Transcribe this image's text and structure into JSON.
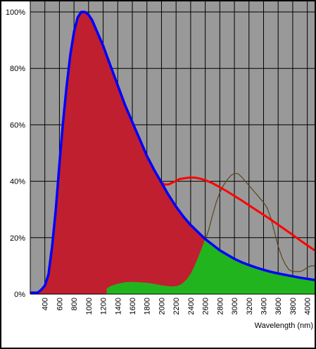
{
  "chart_data": {
    "type": "area",
    "title": "",
    "xlabel": "Wavelength (nm)",
    "ylabel": "",
    "xlim": [
      200,
      4100
    ],
    "ylim": [
      0,
      100
    ],
    "x_ticks": [
      400,
      600,
      800,
      1000,
      1200,
      1400,
      1600,
      1800,
      2000,
      2200,
      2400,
      2600,
      2800,
      3000,
      3200,
      3400,
      3600,
      3800,
      4000
    ],
    "x_tick_labels": [
      "400",
      "600",
      "800",
      "1000",
      "1200",
      "1400",
      "1600",
      "1800",
      "2000",
      "2200",
      "2400",
      "2600",
      "2800",
      "3000",
      "3200",
      "3400",
      "3600",
      "3800",
      "4000"
    ],
    "y_ticks": [
      0,
      20,
      40,
      60,
      80,
      100
    ],
    "y_tick_labels": [
      "0%",
      "20%",
      "40%",
      "60%",
      "80%",
      "100%"
    ],
    "grid": true,
    "legend": "none",
    "colors": {
      "plot_background": "#999999",
      "grid": "#000000",
      "blue_curve": "#0000ff",
      "red_fill": "#bf1f2f",
      "red_curve": "#ff0000",
      "green_fill": "#22b41e",
      "brown_curve": "#5a4620",
      "border": "#000000"
    },
    "series": [
      {
        "role": "blue-curve",
        "x": [
          200,
          260,
          300,
          350,
          400,
          450,
          500,
          550,
          600,
          650,
          700,
          750,
          800,
          850,
          900,
          950,
          1000,
          1050,
          1100,
          1150,
          1200,
          1300,
          1400,
          1500,
          1600,
          1700,
          1800,
          1900,
          2000,
          2100,
          2200,
          2300,
          2400,
          2500,
          2600,
          2700,
          2800,
          2900,
          3000,
          3100,
          3200,
          3300,
          3400,
          3500,
          3600,
          3700,
          3800,
          3900,
          4000,
          4100
        ],
        "values": [
          0.5,
          0.5,
          0.5,
          1.5,
          3,
          7,
          17,
          30,
          46,
          61,
          74,
          85,
          93,
          98,
          100,
          100,
          99,
          97,
          94,
          91,
          88,
          81,
          74,
          67,
          61,
          55,
          49,
          44,
          39.5,
          35,
          31,
          27.5,
          24.5,
          22,
          19.5,
          17.5,
          15.5,
          14,
          12.5,
          11.3,
          10.3,
          9.4,
          8.6,
          7.9,
          7.3,
          6.8,
          6.3,
          5.8,
          5.4,
          5
        ]
      },
      {
        "role": "red-fill-top",
        "x": [
          200,
          260,
          300,
          350,
          400,
          450,
          500,
          550,
          600,
          650,
          700,
          750,
          800,
          850,
          900,
          950,
          1000,
          1050,
          1100,
          1150,
          1200,
          1300,
          1400,
          1500,
          1600,
          1700,
          1800,
          1900,
          2000,
          2100,
          2200,
          2300,
          2400,
          2500,
          2550,
          2600
        ],
        "values": [
          0.5,
          0.5,
          0.5,
          1.5,
          3,
          7,
          17,
          30,
          46,
          61,
          74,
          85,
          93,
          98,
          100,
          100,
          99,
          97,
          94,
          91,
          88,
          81,
          74,
          67,
          61,
          55,
          49,
          44,
          39.5,
          35,
          31,
          27.5,
          24.5,
          22,
          20.8,
          19.5
        ]
      },
      {
        "role": "green-fill-top",
        "x": [
          2600,
          2700,
          2800,
          2900,
          3000,
          3100,
          3200,
          3300,
          3400,
          3500,
          3600,
          3700,
          3800,
          3900,
          4000,
          4100
        ],
        "values": [
          19.5,
          17.5,
          15.5,
          14,
          12.5,
          11.3,
          10.3,
          9.4,
          8.6,
          7.9,
          7.3,
          6.8,
          6.3,
          5.8,
          5.4,
          5
        ]
      },
      {
        "role": "green-fill-bottom",
        "x": [
          1250,
          1300,
          1400,
          1500,
          1600,
          1700,
          1800,
          1900,
          2000,
          2100,
          2150,
          2200,
          2250,
          2300,
          2350,
          2400,
          2450,
          2500,
          2550,
          2600
        ],
        "values": [
          2,
          2.8,
          3.7,
          4.2,
          4.3,
          4.2,
          4,
          3.6,
          3.1,
          2.8,
          2.7,
          2.8,
          3.2,
          4,
          5.3,
          7.2,
          9.8,
          12.8,
          16,
          19.5
        ]
      },
      {
        "role": "red-curve",
        "x": [
          2000,
          2050,
          2100,
          2150,
          2200,
          2250,
          2300,
          2350,
          2400,
          2450,
          2500,
          2550,
          2600,
          2700,
          2800,
          2900,
          3000,
          3100,
          3200,
          3300,
          3400,
          3500,
          3600,
          3700,
          3800,
          3900,
          4000,
          4100
        ],
        "values": [
          39.5,
          38.8,
          38.9,
          39.5,
          40.2,
          40.8,
          41,
          41.2,
          41.3,
          41.3,
          41.1,
          40.8,
          40.4,
          39.3,
          37.9,
          36.4,
          34.8,
          33.2,
          31.5,
          29.8,
          28.1,
          26.4,
          24.6,
          22.8,
          21,
          19.1,
          17.3,
          15.5
        ]
      },
      {
        "role": "brown-curve",
        "x": [
          2600,
          2650,
          2700,
          2750,
          2800,
          2850,
          2900,
          2950,
          3000,
          3050,
          3100,
          3150,
          3200,
          3250,
          3300,
          3350,
          3400,
          3450,
          3500,
          3550,
          3600,
          3650,
          3700,
          3750,
          3800,
          3850,
          3900,
          3950,
          4000,
          4050,
          4100
        ],
        "values": [
          19,
          23,
          28,
          32.5,
          36,
          38.5,
          40.5,
          42,
          42.8,
          42.7,
          41.5,
          40,
          38.5,
          37,
          35.5,
          34,
          32.5,
          30.5,
          27,
          22,
          17,
          13.2,
          10.5,
          8.6,
          8,
          8,
          8,
          8.5,
          9.5,
          10,
          10
        ]
      }
    ]
  }
}
